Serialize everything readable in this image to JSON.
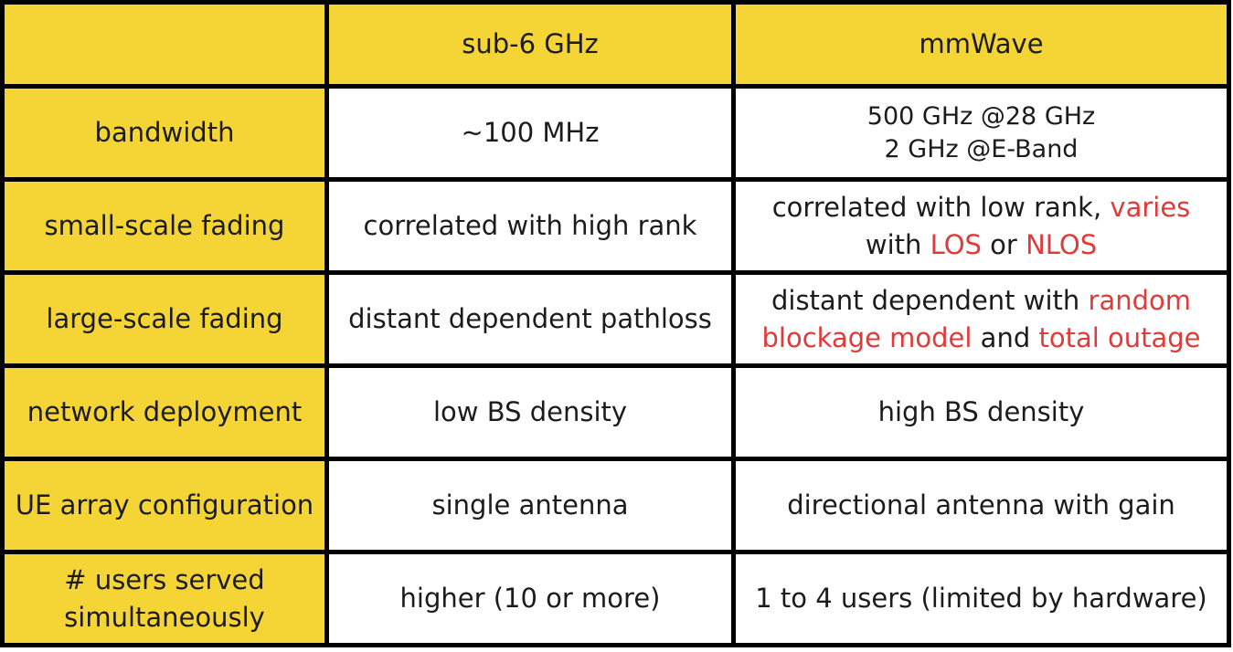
{
  "colors": {
    "header_bg": "#f5d536",
    "cell_bg": "#ffffff",
    "border": "#000000",
    "highlight_text": "#e03a3a"
  },
  "header": {
    "blank": "",
    "col1": "sub-6 GHz",
    "col2": "mmWave"
  },
  "rows": {
    "bandwidth": {
      "label": "bandwidth",
      "sub6": "~100 MHz",
      "mm_line1": "500 GHz @28 GHz",
      "mm_line2": "2 GHz @E-Band"
    },
    "small_scale": {
      "label": "small-scale fading",
      "sub6": "correlated with high rank",
      "mm_a": "correlated with low rank, ",
      "mm_b": "varies",
      "mm_c": "with ",
      "mm_d": "LOS",
      "mm_e": " or ",
      "mm_f": "NLOS"
    },
    "large_scale": {
      "label": "large-scale fading",
      "sub6": "distant dependent pathloss",
      "mm_a": "distant dependent with ",
      "mm_b": "random",
      "mm_c": "blockage model",
      "mm_d": " and ",
      "mm_e": "total outage"
    },
    "network": {
      "label": "network deployment",
      "sub6": "low BS density",
      "mm": "high BS density"
    },
    "ue_array": {
      "label": "UE array configuration",
      "sub6": "single antenna",
      "mm": "directional antenna with gain"
    },
    "users": {
      "label_line1": "# users served",
      "label_line2": "simultaneously",
      "sub6": "higher (10 or more)",
      "mm": "1 to 4 users (limited by hardware)"
    }
  }
}
